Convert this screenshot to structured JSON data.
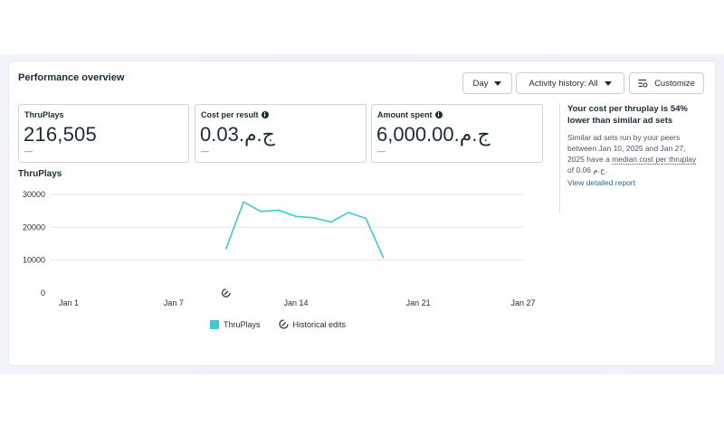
{
  "header": {
    "title": "Performance overview",
    "day_label": "Day",
    "activity_label": "Activity history: All",
    "customize_label": "Customize"
  },
  "metrics": [
    {
      "label": "ThruPlays",
      "value": "216,505",
      "dash": "—",
      "info": false
    },
    {
      "label": "Cost per result",
      "value": "0.03.ج.م",
      "dash": "—",
      "info": true
    },
    {
      "label": "Amount spent",
      "value": "6,000.00.ج.م",
      "dash": "—",
      "info": true
    }
  ],
  "insight": {
    "title": "Your cost per thruplay is 54% lower than similar ad sets",
    "body_before": "Similar ad sets run by your peers between Jan 10, 2025 and Jan 27, 2025 have a ",
    "body_link": "median cost per thruplay",
    "body_after": " of 0.06 ج.م.",
    "link": "View detailed report"
  },
  "colors": {
    "series": "#3ec9cc",
    "accent_link": "#2d6a9a"
  },
  "chart_data": {
    "type": "line",
    "title": "ThruPlays",
    "x_ticks": [
      "Jan 1",
      "Jan 7",
      "Jan 14",
      "Jan 21",
      "Jan 27"
    ],
    "x_tick_days": [
      1,
      7,
      14,
      21,
      27
    ],
    "y_ticks": [
      0,
      10000,
      20000,
      30000
    ],
    "ylim": [
      0,
      30000
    ],
    "xlim": [
      1,
      27
    ],
    "grid": true,
    "legend_position": "bottom",
    "series": [
      {
        "name": "ThruPlays",
        "x": [
          10,
          11,
          12,
          13,
          14,
          15,
          16,
          17,
          18,
          19
        ],
        "y": [
          13500,
          27700,
          24800,
          25200,
          23300,
          22900,
          21600,
          24500,
          22700,
          10800
        ]
      }
    ],
    "historical_edits": [
      {
        "day": 10,
        "icon": "historical-edit-icon"
      }
    ],
    "legend": [
      "ThruPlays",
      "Historical edits"
    ]
  }
}
